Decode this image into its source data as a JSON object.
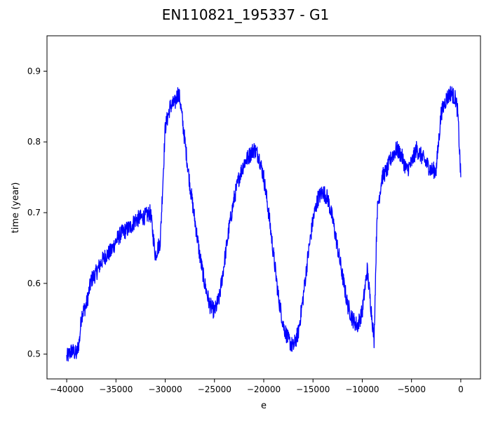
{
  "chart_data": {
    "type": "line",
    "title": "EN110821_195337 - G1",
    "xlabel": "e",
    "ylabel": "time (year)",
    "xlim": [
      -42000,
      2000
    ],
    "ylim": [
      0.465,
      0.95
    ],
    "x_ticks": [
      -40000,
      -35000,
      -30000,
      -25000,
      -20000,
      -15000,
      -10000,
      -5000,
      0
    ],
    "y_ticks": [
      0.5,
      0.6,
      0.7,
      0.8,
      0.9
    ],
    "x_tick_labels": [
      "−40000",
      "−35000",
      "−30000",
      "−25000",
      "−20000",
      "−15000",
      "−10000",
      "−5000",
      "0"
    ],
    "y_tick_labels": [
      "0.5",
      "0.6",
      "0.7",
      "0.8",
      "0.9"
    ],
    "grid": false,
    "legend": "none",
    "series": [
      {
        "color": "#0000ff",
        "noise_amplitude": 0.012,
        "x": [
          -40000,
          -39500,
          -39000,
          -38700,
          -38500,
          -38000,
          -37500,
          -37000,
          -36500,
          -36000,
          -35500,
          -35000,
          -34500,
          -34000,
          -33500,
          -33000,
          -32000,
          -31500,
          -31000,
          -30500,
          -30000,
          -29500,
          -29000,
          -28700,
          -28500,
          -28000,
          -27500,
          -27000,
          -26500,
          -26000,
          -25500,
          -25000,
          -24500,
          -24000,
          -23500,
          -23000,
          -22500,
          -22000,
          -21500,
          -21000,
          -20500,
          -20000,
          -19500,
          -19000,
          -18500,
          -18000,
          -17500,
          -17000,
          -16500,
          -16000,
          -15500,
          -15000,
          -14500,
          -14000,
          -13500,
          -13000,
          -12500,
          -12000,
          -11500,
          -11000,
          -10500,
          -10000,
          -9500,
          -9000,
          -8800,
          -8500,
          -8000,
          -7500,
          -7000,
          -6500,
          -6000,
          -5500,
          -5000,
          -4500,
          -4000,
          -3500,
          -3000,
          -2500,
          -2000,
          -1500,
          -1000,
          -500,
          -300,
          0
        ],
        "y": [
          0.495,
          0.505,
          0.5,
          0.52,
          0.555,
          0.57,
          0.605,
          0.615,
          0.63,
          0.64,
          0.645,
          0.66,
          0.67,
          0.675,
          0.68,
          0.69,
          0.695,
          0.7,
          0.64,
          0.66,
          0.82,
          0.85,
          0.855,
          0.87,
          0.86,
          0.8,
          0.74,
          0.69,
          0.64,
          0.6,
          0.57,
          0.56,
          0.58,
          0.63,
          0.68,
          0.72,
          0.75,
          0.77,
          0.78,
          0.79,
          0.78,
          0.75,
          0.7,
          0.64,
          0.58,
          0.54,
          0.52,
          0.51,
          0.53,
          0.58,
          0.64,
          0.69,
          0.72,
          0.73,
          0.72,
          0.69,
          0.65,
          0.61,
          0.57,
          0.55,
          0.54,
          0.56,
          0.62,
          0.55,
          0.52,
          0.7,
          0.75,
          0.76,
          0.78,
          0.79,
          0.78,
          0.76,
          0.77,
          0.79,
          0.78,
          0.77,
          0.76,
          0.76,
          0.84,
          0.86,
          0.87,
          0.86,
          0.84,
          0.75
        ]
      }
    ]
  }
}
